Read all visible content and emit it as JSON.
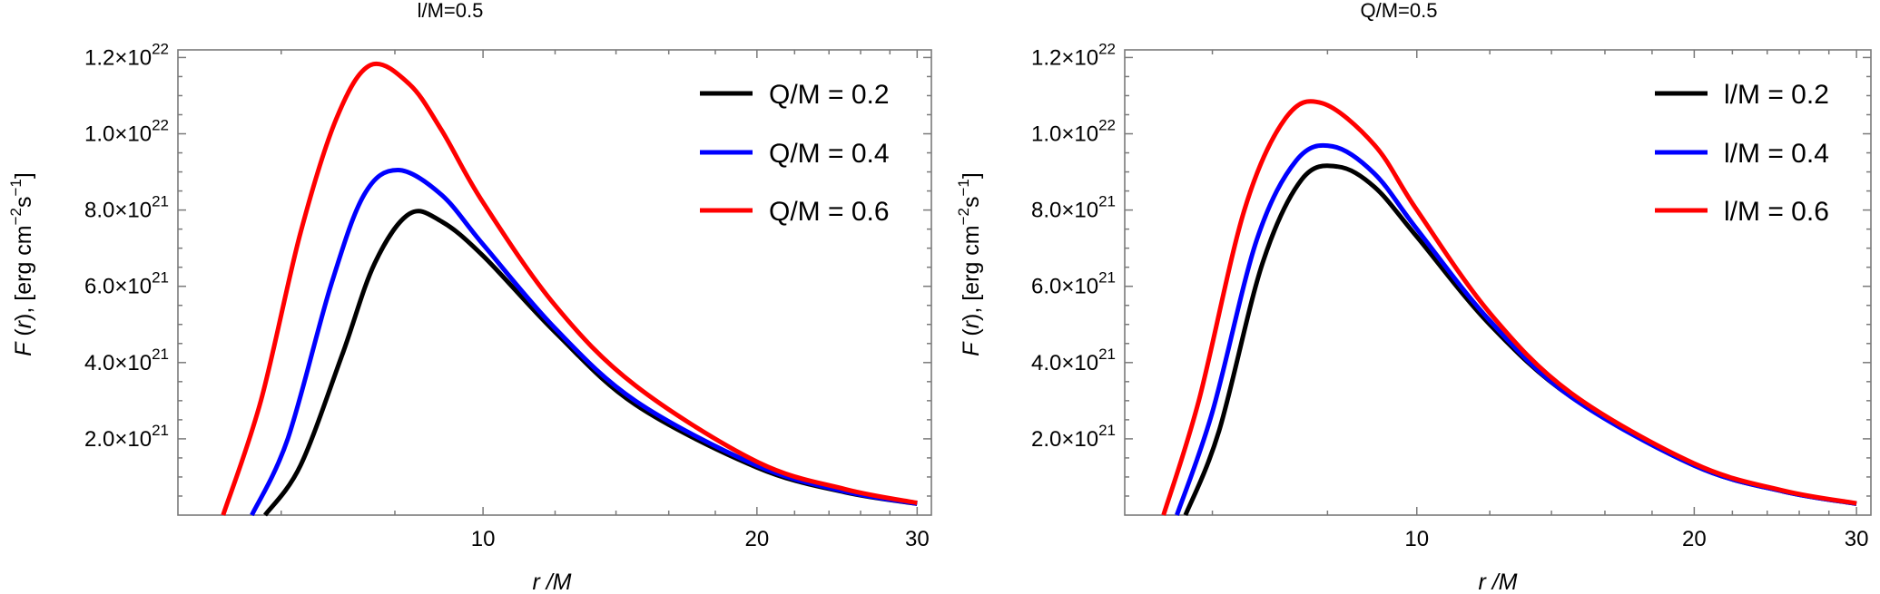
{
  "chart_data": [
    {
      "type": "line",
      "title": "l/M=0.5",
      "xlabel": "r /M",
      "ylabel": "F (r),  [erg cm^-2 s^-1]",
      "xscale": "log",
      "xlim": [
        4.62,
        31.1
      ],
      "ylim": [
        0,
        1.22e+22
      ],
      "xticks": [
        10,
        20,
        30
      ],
      "xtick_labels": [
        "10",
        "20",
        "30"
      ],
      "yticks": [
        2e+21,
        4e+21,
        6e+21,
        8e+21,
        1e+22,
        1.2e+22
      ],
      "ytick_labels": [
        {
          "mant": "2.0",
          "exp": "21"
        },
        {
          "mant": "4.0",
          "exp": "21"
        },
        {
          "mant": "6.0",
          "exp": "21"
        },
        {
          "mant": "8.0",
          "exp": "21"
        },
        {
          "mant": "1.0",
          "exp": "22"
        },
        {
          "mant": "1.2",
          "exp": "22"
        }
      ],
      "legend_position": "top-right",
      "y_unit_multiplier": 1e+21,
      "series": [
        {
          "name": "Q/M = 0.2",
          "color": "#000000",
          "r": [
            5.76,
            6.3,
            7.0,
            7.6,
            8.3,
            9.0,
            10.0,
            12.0,
            14.7,
            20.0,
            25.0,
            30.0
          ],
          "F": [
            0.0,
            1.3,
            4.2,
            6.6,
            7.9,
            7.7,
            6.8,
            4.8,
            2.9,
            1.25,
            0.6,
            0.3
          ]
        },
        {
          "name": "Q/M = 0.4",
          "color": "#0000ff",
          "r": [
            5.57,
            6.1,
            6.8,
            7.4,
            8.06,
            9.0,
            10.0,
            12.0,
            14.7,
            20.0,
            25.0,
            30.0
          ],
          "F": [
            0.0,
            2.0,
            6.0,
            8.4,
            9.05,
            8.4,
            7.1,
            4.9,
            3.0,
            1.3,
            0.62,
            0.3
          ]
        },
        {
          "name": "Q/M = 0.6",
          "color": "#ff0000",
          "r": [
            5.18,
            5.7,
            6.3,
            6.9,
            7.52,
            8.3,
            9.0,
            10.0,
            12.0,
            14.7,
            20.0,
            25.0,
            30.0
          ],
          "F": [
            0.0,
            3.0,
            7.4,
            10.4,
            11.8,
            11.3,
            10.1,
            8.2,
            5.5,
            3.4,
            1.4,
            0.68,
            0.32
          ]
        }
      ]
    },
    {
      "type": "line",
      "title": "Q/M=0.5",
      "xlabel": "r /M",
      "ylabel": "F (r),  [erg cm^-2 s^-1]",
      "xscale": "log",
      "xlim": [
        4.82,
        31.1
      ],
      "ylim": [
        0,
        1.22e+22
      ],
      "xticks": [
        10,
        20,
        30
      ],
      "xtick_labels": [
        "10",
        "20",
        "30"
      ],
      "yticks": [
        2e+21,
        4e+21,
        6e+21,
        8e+21,
        1e+22,
        1.2e+22
      ],
      "ytick_labels": [
        {
          "mant": "2.0",
          "exp": "21"
        },
        {
          "mant": "4.0",
          "exp": "21"
        },
        {
          "mant": "6.0",
          "exp": "21"
        },
        {
          "mant": "8.0",
          "exp": "21"
        },
        {
          "mant": "1.0",
          "exp": "22"
        },
        {
          "mant": "1.2",
          "exp": "22"
        }
      ],
      "legend_position": "top-right",
      "y_unit_multiplier": 1e+21,
      "series": [
        {
          "name": "l/M = 0.2",
          "color": "#000000",
          "r": [
            5.61,
            6.1,
            6.8,
            7.5,
            8.2,
            9.0,
            10.0,
            12.0,
            14.7,
            20.0,
            25.0,
            30.0
          ],
          "F": [
            0.0,
            2.2,
            6.6,
            8.8,
            9.14,
            8.6,
            7.3,
            5.0,
            3.1,
            1.3,
            0.62,
            0.3
          ]
        },
        {
          "name": "l/M = 0.4",
          "color": "#0000ff",
          "r": [
            5.49,
            6.0,
            6.7,
            7.4,
            8.1,
            9.0,
            10.0,
            12.0,
            14.7,
            20.0,
            25.0,
            30.0
          ],
          "F": [
            0.0,
            2.7,
            7.2,
            9.3,
            9.67,
            8.95,
            7.5,
            5.1,
            3.1,
            1.3,
            0.62,
            0.3
          ]
        },
        {
          "name": "l/M = 0.6",
          "color": "#ff0000",
          "r": [
            5.31,
            5.8,
            6.5,
            7.2,
            7.9,
            9.0,
            10.0,
            12.0,
            14.7,
            20.0,
            25.0,
            30.0
          ],
          "F": [
            0.0,
            3.0,
            8.0,
            10.4,
            10.8,
            9.7,
            8.0,
            5.3,
            3.2,
            1.35,
            0.64,
            0.31
          ]
        }
      ]
    }
  ]
}
